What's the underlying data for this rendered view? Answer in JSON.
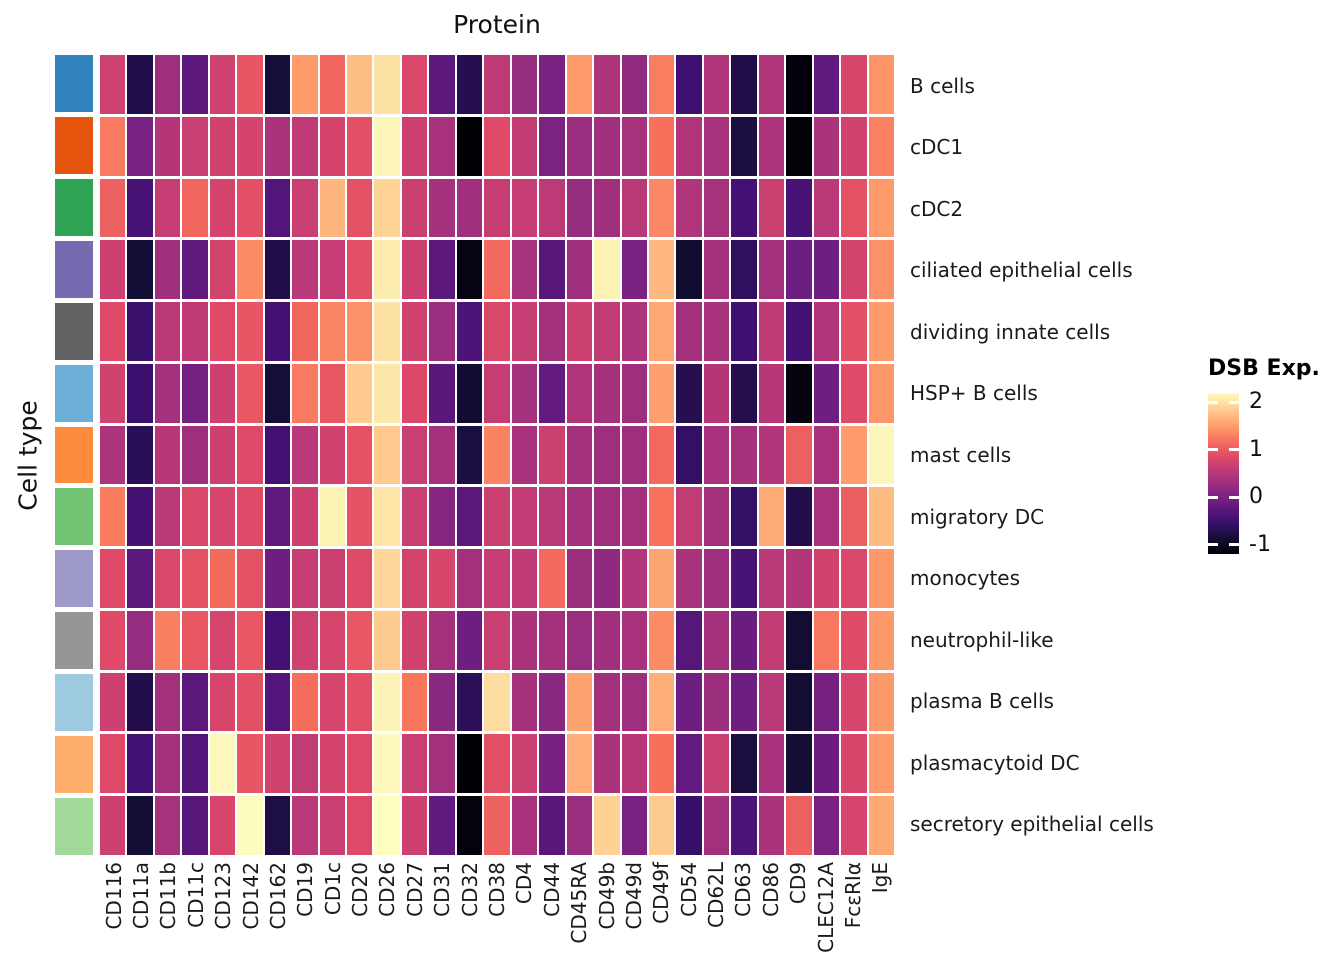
{
  "figure": {
    "background": "#ffffff",
    "x_axis_title": "Protein",
    "y_axis_title": "Cell type"
  },
  "legend": {
    "title": "DSB Exp.",
    "ticks": [
      {
        "label": "2",
        "value": 2
      },
      {
        "label": "1",
        "value": 1
      },
      {
        "label": "0",
        "value": 0
      },
      {
        "label": "-1",
        "value": -1
      }
    ]
  },
  "chart_data": {
    "type": "heatmap",
    "title": "",
    "xlabel": "Protein",
    "ylabel": "Cell type",
    "value_label": "DSB Exp.",
    "colormap": "magma",
    "colormap_stops": [
      "#000004",
      "#140e36",
      "#3b0f70",
      "#641a80",
      "#8c2981",
      "#b73779",
      "#de4968",
      "#f7705c",
      "#fe9f6d",
      "#fece91",
      "#fcfdbf"
    ],
    "color_domain": [
      -1.2,
      2.2
    ],
    "legend_range_shown": [
      -1,
      2
    ],
    "x_categories": [
      "CD116",
      "CD11a",
      "CD11b",
      "CD11c",
      "CD123",
      "CD142",
      "CD162",
      "CD19",
      "CD1c",
      "CD20",
      "CD26",
      "CD27",
      "CD31",
      "CD32",
      "CD38",
      "CD4",
      "CD44",
      "CD45RA",
      "CD49b",
      "CD49d",
      "CD49f",
      "CD54",
      "CD62L",
      "CD63",
      "CD86",
      "CD9",
      "CLEC12A",
      "FcεRIα",
      "IgE"
    ],
    "y_categories": [
      "B cells",
      "cDC1",
      "cDC2",
      "ciliated epithelial cells",
      "dividing innate cells",
      "HSP+ B cells",
      "mast cells",
      "migratory DC",
      "monocytes",
      "neutrophil-like",
      "plasma B cells",
      "plasmacytoid DC",
      "secretory epithelial cells"
    ],
    "row_annotation_colors": [
      "#3182bd",
      "#e6550d",
      "#31a354",
      "#756bb1",
      "#636363",
      "#6baed6",
      "#fd8d3c",
      "#74c476",
      "#9e9ac8",
      "#969696",
      "#9ecae1",
      "#fdae6b",
      "#a1d99b"
    ],
    "values": [
      [
        0.7,
        -0.75,
        0.3,
        -0.25,
        0.7,
        0.95,
        -0.85,
        1.5,
        1.1,
        1.75,
        2.0,
        0.8,
        -0.25,
        -0.7,
        0.55,
        0.25,
        0.0,
        1.5,
        0.42,
        0.2,
        1.28,
        -0.5,
        0.45,
        -0.75,
        0.45,
        -1.15,
        -0.2,
        0.78,
        1.45
      ],
      [
        1.25,
        0.0,
        0.48,
        0.65,
        0.72,
        0.75,
        0.4,
        0.58,
        0.75,
        0.9,
        2.15,
        0.68,
        0.38,
        -1.2,
        0.85,
        0.6,
        0.02,
        0.28,
        0.32,
        0.37,
        1.18,
        0.45,
        0.37,
        -0.8,
        0.43,
        -1.18,
        0.4,
        0.72,
        1.3
      ],
      [
        1.05,
        -0.4,
        0.62,
        1.1,
        0.75,
        0.9,
        -0.33,
        0.66,
        1.68,
        0.92,
        1.9,
        0.67,
        0.35,
        0.32,
        0.62,
        0.62,
        0.55,
        0.25,
        0.32,
        0.52,
        1.35,
        0.45,
        0.37,
        -0.45,
        0.67,
        -0.4,
        0.53,
        0.92,
        1.48
      ],
      [
        0.68,
        -0.87,
        0.32,
        -0.2,
        0.74,
        1.38,
        -0.75,
        0.53,
        0.63,
        0.9,
        2.08,
        0.68,
        -0.25,
        -1.1,
        1.12,
        0.37,
        -0.3,
        0.3,
        2.12,
        0.0,
        1.7,
        -0.9,
        0.34,
        -0.62,
        0.34,
        -0.1,
        -0.1,
        0.74,
        1.42
      ],
      [
        0.85,
        -0.55,
        0.52,
        0.57,
        0.85,
        0.95,
        -0.45,
        1.1,
        1.33,
        1.43,
        2.0,
        0.72,
        0.28,
        -0.38,
        0.8,
        0.62,
        0.33,
        0.68,
        0.6,
        0.43,
        1.58,
        0.33,
        0.38,
        -0.5,
        0.57,
        -0.45,
        0.45,
        0.9,
        1.5
      ],
      [
        0.72,
        -0.53,
        0.35,
        -0.05,
        0.68,
        0.97,
        -0.85,
        1.25,
        0.97,
        1.83,
        2.05,
        0.82,
        -0.27,
        -0.9,
        0.62,
        0.35,
        -0.18,
        0.45,
        0.36,
        0.3,
        1.53,
        -0.7,
        0.48,
        -0.72,
        0.5,
        -1.12,
        -0.1,
        0.85,
        1.46
      ],
      [
        0.42,
        -0.68,
        0.5,
        0.3,
        0.68,
        0.84,
        -0.45,
        0.53,
        0.73,
        0.92,
        1.83,
        0.65,
        0.36,
        -0.8,
        1.32,
        0.39,
        0.68,
        0.33,
        0.3,
        0.3,
        1.12,
        -0.58,
        0.39,
        0.36,
        0.47,
        1.04,
        0.38,
        1.5,
        2.15
      ],
      [
        1.26,
        -0.44,
        0.53,
        0.8,
        0.76,
        0.84,
        -0.22,
        0.68,
        2.12,
        0.93,
        2.02,
        0.65,
        0.08,
        -0.26,
        0.67,
        0.59,
        0.53,
        0.34,
        0.31,
        0.34,
        1.19,
        0.59,
        0.34,
        -0.58,
        1.6,
        -0.73,
        0.38,
        1.03,
        1.73
      ],
      [
        0.85,
        -0.26,
        0.8,
        0.92,
        1.14,
        0.92,
        -0.1,
        0.63,
        0.67,
        0.85,
        1.93,
        0.74,
        0.79,
        0.33,
        0.61,
        0.58,
        1.12,
        0.29,
        0.19,
        0.47,
        1.57,
        0.37,
        0.3,
        -0.4,
        0.53,
        0.47,
        0.72,
        0.8,
        1.47
      ],
      [
        0.85,
        0.24,
        1.29,
        0.97,
        0.77,
        0.96,
        -0.45,
        0.7,
        0.77,
        0.96,
        1.84,
        0.72,
        0.33,
        -0.1,
        0.65,
        0.4,
        0.34,
        0.27,
        0.32,
        0.38,
        1.38,
        -0.3,
        0.34,
        -0.13,
        0.6,
        -0.88,
        1.24,
        0.86,
        1.47
      ],
      [
        0.68,
        -0.74,
        0.34,
        -0.26,
        0.79,
        0.9,
        -0.33,
        1.15,
        0.77,
        0.9,
        2.13,
        1.22,
        0.13,
        -0.66,
        1.97,
        0.36,
        0.13,
        1.54,
        0.33,
        0.3,
        1.63,
        -0.1,
        0.29,
        -0.1,
        0.52,
        -0.88,
        -0.03,
        0.79,
        1.47
      ],
      [
        0.84,
        -0.48,
        0.33,
        -0.33,
        2.16,
        0.95,
        0.72,
        0.6,
        0.75,
        0.85,
        2.17,
        0.66,
        0.33,
        -1.2,
        0.9,
        0.68,
        -0.03,
        1.62,
        0.4,
        0.5,
        1.18,
        -0.19,
        0.65,
        -0.81,
        0.38,
        -0.86,
        -0.13,
        0.79,
        1.48
      ],
      [
        0.68,
        -0.87,
        0.37,
        -0.3,
        0.79,
        2.19,
        -0.78,
        0.52,
        0.66,
        0.84,
        2.2,
        0.68,
        -0.2,
        -1.14,
        1.05,
        0.39,
        -0.27,
        0.27,
        1.88,
        0.0,
        1.84,
        -0.56,
        0.33,
        -0.38,
        0.4,
        1.04,
        -0.01,
        0.76,
        1.59
      ]
    ]
  }
}
